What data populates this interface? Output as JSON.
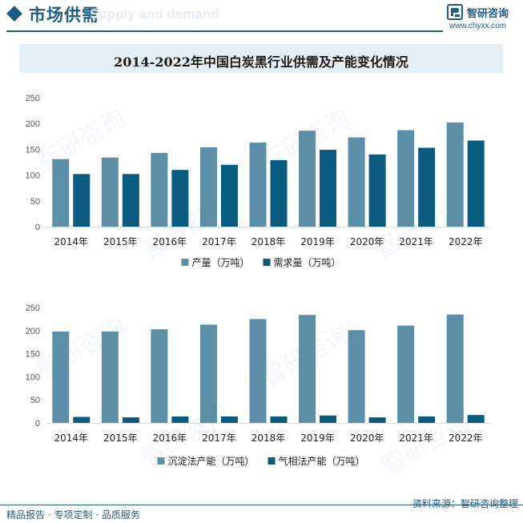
{
  "header": {
    "title": "市场供需",
    "ghost_text": "Supply and demand",
    "logo_name": "智研咨询",
    "logo_url": "www.chyxx.com"
  },
  "title": "2014-2022年中国白炭黑行业供需及产能变化情况",
  "footer": {
    "left": "精品报告 · 专项定制 · 品质服务",
    "source": "资料来源：智研咨询整理"
  },
  "watermark": "智研咨询",
  "colors": {
    "series_a": "#5b8fa8",
    "series_b": "#0a5b80",
    "brand": "#1f5c84",
    "axis_text": "#555555"
  },
  "chart_data": [
    {
      "type": "bar",
      "categories": [
        "2014年",
        "2015年",
        "2016年",
        "2017年",
        "2018年",
        "2019年",
        "2020年",
        "2021年",
        "2022年"
      ],
      "series": [
        {
          "name": "产量（万吨）",
          "values": [
            131,
            134,
            143,
            154,
            163,
            186,
            173,
            187,
            202
          ]
        },
        {
          "name": "需求量（万吨）",
          "values": [
            102,
            102,
            110,
            120,
            129,
            149,
            140,
            153,
            167
          ]
        }
      ],
      "ylim": [
        0,
        250
      ],
      "yticks": [
        0,
        50,
        100,
        150,
        200,
        250
      ],
      "legend": "bottom",
      "grid": false
    },
    {
      "type": "bar",
      "categories": [
        "2014年",
        "2015年",
        "2016年",
        "2017年",
        "2018年",
        "2019年",
        "2020年",
        "2021年",
        "2022年"
      ],
      "series": [
        {
          "name": "沉淀法产能（万吨）",
          "values": [
            198,
            198,
            203,
            213,
            225,
            234,
            201,
            211,
            235
          ]
        },
        {
          "name": "气相法产能（万吨）",
          "values": [
            13,
            12,
            14,
            14,
            14,
            16,
            12,
            14,
            17
          ]
        }
      ],
      "ylim": [
        0,
        250
      ],
      "yticks": [
        0,
        50,
        100,
        150,
        200,
        250
      ],
      "legend": "bottom",
      "grid": false
    }
  ]
}
